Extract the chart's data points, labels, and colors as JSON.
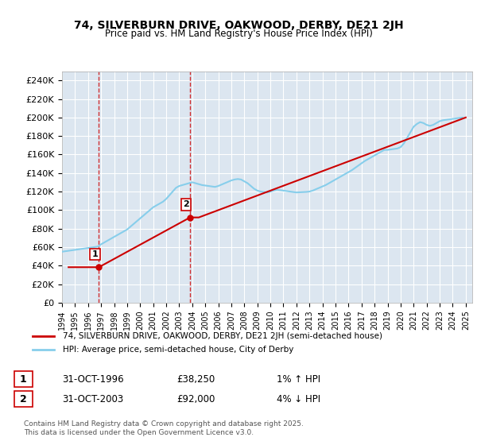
{
  "title": "74, SILVERBURN DRIVE, OAKWOOD, DERBY, DE21 2JH",
  "subtitle": "Price paid vs. HM Land Registry's House Price Index (HPI)",
  "ylim": [
    0,
    250000
  ],
  "yticks": [
    0,
    20000,
    40000,
    60000,
    80000,
    100000,
    120000,
    140000,
    160000,
    180000,
    200000,
    220000,
    240000
  ],
  "ytick_labels": [
    "£0",
    "£20K",
    "£40K",
    "£60K",
    "£80K",
    "£100K",
    "£120K",
    "£140K",
    "£160K",
    "£180K",
    "£200K",
    "£220K",
    "£240K"
  ],
  "xlim_start": 1994.0,
  "xlim_end": 2025.5,
  "xticks": [
    1994,
    1995,
    1996,
    1997,
    1998,
    1999,
    2000,
    2001,
    2002,
    2003,
    2004,
    2005,
    2006,
    2007,
    2008,
    2009,
    2010,
    2011,
    2012,
    2013,
    2014,
    2015,
    2016,
    2017,
    2018,
    2019,
    2020,
    2021,
    2022,
    2023,
    2024,
    2025
  ],
  "sale1_x": 1996.833,
  "sale1_y": 38250,
  "sale1_label": "1",
  "sale2_x": 2003.833,
  "sale2_y": 92000,
  "sale2_label": "2",
  "property_color": "#cc0000",
  "hpi_color": "#87CEEB",
  "hpi_color_dark": "#6baed6",
  "vline_color": "#cc0000",
  "legend_label1": "74, SILVERBURN DRIVE, OAKWOOD, DERBY, DE21 2JH (semi-detached house)",
  "legend_label2": "HPI: Average price, semi-detached house, City of Derby",
  "table_row1": [
    "1",
    "31-OCT-1996",
    "£38,250",
    "1% ↑ HPI"
  ],
  "table_row2": [
    "2",
    "31-OCT-2003",
    "£92,000",
    "4% ↓ HPI"
  ],
  "footer": "Contains HM Land Registry data © Crown copyright and database right 2025.\nThis data is licensed under the Open Government Licence v3.0.",
  "bg_color": "#ffffff",
  "plot_bg_color": "#dce6f0",
  "grid_color": "#ffffff",
  "hpi_years": [
    1994.0,
    1994.25,
    1994.5,
    1994.75,
    1995.0,
    1995.25,
    1995.5,
    1995.75,
    1996.0,
    1996.25,
    1996.5,
    1996.75,
    1997.0,
    1997.25,
    1997.5,
    1997.75,
    1998.0,
    1998.25,
    1998.5,
    1998.75,
    1999.0,
    1999.25,
    1999.5,
    1999.75,
    2000.0,
    2000.25,
    2000.5,
    2000.75,
    2001.0,
    2001.25,
    2001.5,
    2001.75,
    2002.0,
    2002.25,
    2002.5,
    2002.75,
    2003.0,
    2003.25,
    2003.5,
    2003.75,
    2004.0,
    2004.25,
    2004.5,
    2004.75,
    2005.0,
    2005.25,
    2005.5,
    2005.75,
    2006.0,
    2006.25,
    2006.5,
    2006.75,
    2007.0,
    2007.25,
    2007.5,
    2007.75,
    2008.0,
    2008.25,
    2008.5,
    2008.75,
    2009.0,
    2009.25,
    2009.5,
    2009.75,
    2010.0,
    2010.25,
    2010.5,
    2010.75,
    2011.0,
    2011.25,
    2011.5,
    2011.75,
    2012.0,
    2012.25,
    2012.5,
    2012.75,
    2013.0,
    2013.25,
    2013.5,
    2013.75,
    2014.0,
    2014.25,
    2014.5,
    2014.75,
    2015.0,
    2015.25,
    2015.5,
    2015.75,
    2016.0,
    2016.25,
    2016.5,
    2016.75,
    2017.0,
    2017.25,
    2017.5,
    2017.75,
    2018.0,
    2018.25,
    2018.5,
    2018.75,
    2019.0,
    2019.25,
    2019.5,
    2019.75,
    2020.0,
    2020.25,
    2020.5,
    2020.75,
    2021.0,
    2021.25,
    2021.5,
    2021.75,
    2022.0,
    2022.25,
    2022.5,
    2022.75,
    2023.0,
    2023.25,
    2023.5,
    2023.75,
    2024.0,
    2024.25,
    2024.5,
    2024.75
  ],
  "hpi_values": [
    55000,
    55500,
    56000,
    56500,
    57000,
    57500,
    58000,
    58500,
    59000,
    59500,
    60000,
    60500,
    63000,
    65000,
    67000,
    69000,
    71000,
    73000,
    75000,
    77000,
    79000,
    82000,
    85000,
    88000,
    91000,
    94000,
    97000,
    100000,
    103000,
    105000,
    107000,
    109000,
    112000,
    116000,
    120000,
    124000,
    126000,
    127000,
    128000,
    129000,
    130000,
    129000,
    128000,
    127000,
    126500,
    126000,
    125500,
    125000,
    126000,
    127500,
    129000,
    130500,
    132000,
    133000,
    133500,
    133000,
    131000,
    129000,
    126000,
    123000,
    121000,
    120000,
    119500,
    119000,
    120000,
    121000,
    122000,
    121500,
    121000,
    120500,
    120000,
    119500,
    119000,
    119200,
    119400,
    119600,
    120000,
    121000,
    122500,
    124000,
    125500,
    127000,
    129000,
    131000,
    133000,
    135000,
    137000,
    139000,
    141000,
    143000,
    145500,
    148000,
    150500,
    153000,
    155000,
    157000,
    159000,
    161000,
    163000,
    165000,
    165000,
    165500,
    166000,
    166500,
    168000,
    172000,
    178000,
    184000,
    190000,
    193000,
    195000,
    194000,
    192000,
    191000,
    192000,
    194000,
    196000,
    197000,
    197500,
    198000,
    198500,
    199000,
    199500,
    200000
  ],
  "prop_years": [
    1994.5,
    1996.0,
    1996.833,
    2003.833,
    2004.5,
    2025.0
  ],
  "prop_values": [
    38250,
    38250,
    38250,
    92000,
    92000,
    200000
  ]
}
